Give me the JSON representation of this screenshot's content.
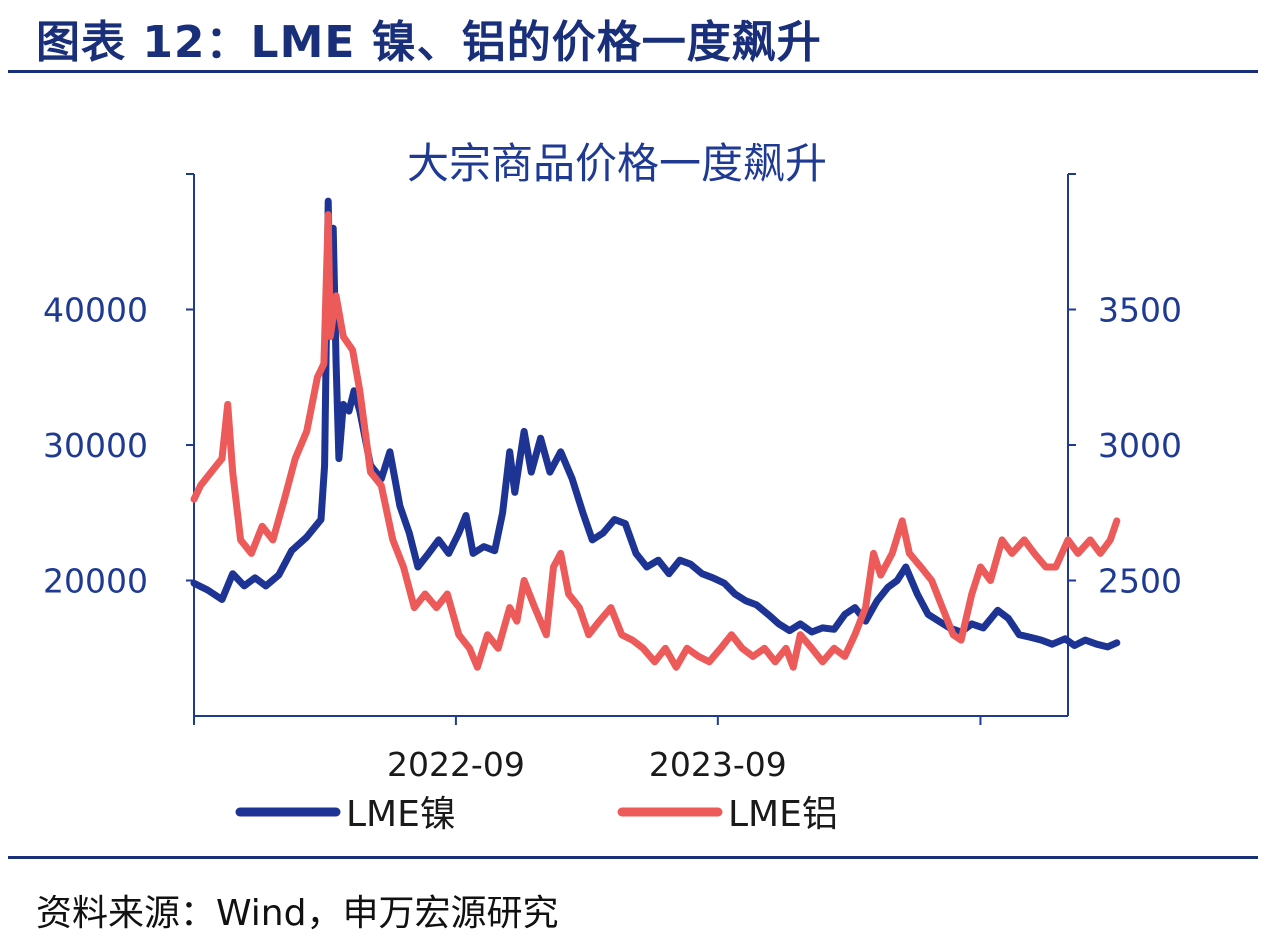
{
  "figure_title": "图表 12：LME 镍、铝的价格一度飙升",
  "source_text": "资料来源：Wind，申万宏源研究",
  "colors": {
    "title": "#1a2f7a",
    "axis": "#1f3a93",
    "nickel": "#1d3494",
    "aluminum": "#ec5a5a"
  },
  "chart_data": {
    "type": "line",
    "title": "大宗商品价格一度飙升",
    "x_tick_labels": [
      "2022-09",
      "2023-09"
    ],
    "x_tick_dates": [
      "2021-09",
      "2022-09",
      "2023-09",
      "2024-09"
    ],
    "x_range": [
      "2021-09",
      "2025-01"
    ],
    "y_left": {
      "ticks": [
        "20000",
        "30000",
        "40000"
      ],
      "range": [
        10000,
        50000
      ]
    },
    "y_right": {
      "ticks": [
        "2500",
        "3000",
        "3500"
      ],
      "range": [
        2000,
        4000
      ]
    },
    "legend_position": "bottom",
    "grid": false,
    "series": [
      {
        "name": "LME镍",
        "axis": "left",
        "points": [
          [
            "2021-09-01",
            19800
          ],
          [
            "2021-09-20",
            19300
          ],
          [
            "2021-10-10",
            18600
          ],
          [
            "2021-10-25",
            20500
          ],
          [
            "2021-11-10",
            19600
          ],
          [
            "2021-11-25",
            20200
          ],
          [
            "2021-12-10",
            19600
          ],
          [
            "2021-12-28",
            20400
          ],
          [
            "2022-01-15",
            22200
          ],
          [
            "2022-02-05",
            23200
          ],
          [
            "2022-02-25",
            24500
          ],
          [
            "2022-03-02",
            28500
          ],
          [
            "2022-03-07",
            48000
          ],
          [
            "2022-03-10",
            40000
          ],
          [
            "2022-03-14",
            46000
          ],
          [
            "2022-03-18",
            36000
          ],
          [
            "2022-03-22",
            29000
          ],
          [
            "2022-03-28",
            33000
          ],
          [
            "2022-04-05",
            32500
          ],
          [
            "2022-04-12",
            34000
          ],
          [
            "2022-04-20",
            32500
          ],
          [
            "2022-05-05",
            28500
          ],
          [
            "2022-05-20",
            27500
          ],
          [
            "2022-06-01",
            29500
          ],
          [
            "2022-06-15",
            25500
          ],
          [
            "2022-06-28",
            23500
          ],
          [
            "2022-07-10",
            21000
          ],
          [
            "2022-07-25",
            22000
          ],
          [
            "2022-08-08",
            23000
          ],
          [
            "2022-08-22",
            22000
          ],
          [
            "2022-09-05",
            23500
          ],
          [
            "2022-09-15",
            24800
          ],
          [
            "2022-09-25",
            22000
          ],
          [
            "2022-10-10",
            22500
          ],
          [
            "2022-10-25",
            22200
          ],
          [
            "2022-11-05",
            25000
          ],
          [
            "2022-11-15",
            29500
          ],
          [
            "2022-11-22",
            26500
          ],
          [
            "2022-12-05",
            31000
          ],
          [
            "2022-12-15",
            28000
          ],
          [
            "2022-12-28",
            30500
          ],
          [
            "2023-01-10",
            28000
          ],
          [
            "2023-01-25",
            29500
          ],
          [
            "2023-02-10",
            27500
          ],
          [
            "2023-02-25",
            25000
          ],
          [
            "2023-03-10",
            23000
          ],
          [
            "2023-03-25",
            23500
          ],
          [
            "2023-04-10",
            24500
          ],
          [
            "2023-04-25",
            24200
          ],
          [
            "2023-05-10",
            22000
          ],
          [
            "2023-05-25",
            21000
          ],
          [
            "2023-06-10",
            21500
          ],
          [
            "2023-06-25",
            20500
          ],
          [
            "2023-07-10",
            21500
          ],
          [
            "2023-07-25",
            21200
          ],
          [
            "2023-08-10",
            20500
          ],
          [
            "2023-08-25",
            20200
          ],
          [
            "2023-09-10",
            19800
          ],
          [
            "2023-09-25",
            19000
          ],
          [
            "2023-10-10",
            18500
          ],
          [
            "2023-10-25",
            18200
          ],
          [
            "2023-11-10",
            17500
          ],
          [
            "2023-11-25",
            16800
          ],
          [
            "2023-12-10",
            16300
          ],
          [
            "2023-12-25",
            16800
          ],
          [
            "2024-01-10",
            16200
          ],
          [
            "2024-01-25",
            16500
          ],
          [
            "2024-02-10",
            16400
          ],
          [
            "2024-02-25",
            17500
          ],
          [
            "2024-03-10",
            18000
          ],
          [
            "2024-03-25",
            17000
          ],
          [
            "2024-04-10",
            18500
          ],
          [
            "2024-04-25",
            19500
          ],
          [
            "2024-05-08",
            20000
          ],
          [
            "2024-05-20",
            21000
          ],
          [
            "2024-06-05",
            19000
          ],
          [
            "2024-06-20",
            17500
          ],
          [
            "2024-07-05",
            17000
          ],
          [
            "2024-07-20",
            16500
          ],
          [
            "2024-08-05",
            16200
          ],
          [
            "2024-08-20",
            16800
          ],
          [
            "2024-09-05",
            16500
          ],
          [
            "2024-09-25",
            17800
          ],
          [
            "2024-10-10",
            17200
          ],
          [
            "2024-10-25",
            16000
          ],
          [
            "2024-11-10",
            15800
          ],
          [
            "2024-11-25",
            15600
          ],
          [
            "2024-12-10",
            15300
          ],
          [
            "2024-12-28",
            15700
          ],
          [
            "2025-01-10",
            15200
          ],
          [
            "2025-01-25",
            15600
          ],
          [
            "2025-02-10",
            15300
          ],
          [
            "2025-02-25",
            15100
          ],
          [
            "2025-03-10",
            15400
          ]
        ]
      },
      {
        "name": "LME铝",
        "axis": "right",
        "points": [
          [
            "2021-09-01",
            2800
          ],
          [
            "2021-09-10",
            2850
          ],
          [
            "2021-09-25",
            2900
          ],
          [
            "2021-10-10",
            2950
          ],
          [
            "2021-10-18",
            3150
          ],
          [
            "2021-10-25",
            2900
          ],
          [
            "2021-11-05",
            2650
          ],
          [
            "2021-11-20",
            2600
          ],
          [
            "2021-12-05",
            2700
          ],
          [
            "2021-12-20",
            2650
          ],
          [
            "2022-01-05",
            2800
          ],
          [
            "2022-01-20",
            2950
          ],
          [
            "2022-02-05",
            3050
          ],
          [
            "2022-02-20",
            3250
          ],
          [
            "2022-03-01",
            3300
          ],
          [
            "2022-03-07",
            3850
          ],
          [
            "2022-03-10",
            3400
          ],
          [
            "2022-03-18",
            3550
          ],
          [
            "2022-03-28",
            3400
          ],
          [
            "2022-04-10",
            3350
          ],
          [
            "2022-04-20",
            3200
          ],
          [
            "2022-05-05",
            2900
          ],
          [
            "2022-05-20",
            2850
          ],
          [
            "2022-06-05",
            2650
          ],
          [
            "2022-06-20",
            2550
          ],
          [
            "2022-07-05",
            2400
          ],
          [
            "2022-07-20",
            2450
          ],
          [
            "2022-08-05",
            2400
          ],
          [
            "2022-08-20",
            2450
          ],
          [
            "2022-09-05",
            2300
          ],
          [
            "2022-09-20",
            2250
          ],
          [
            "2022-10-01",
            2180
          ],
          [
            "2022-10-15",
            2300
          ],
          [
            "2022-10-30",
            2250
          ],
          [
            "2022-11-15",
            2400
          ],
          [
            "2022-11-25",
            2350
          ],
          [
            "2022-12-05",
            2500
          ],
          [
            "2022-12-20",
            2400
          ],
          [
            "2023-01-05",
            2300
          ],
          [
            "2023-01-15",
            2550
          ],
          [
            "2023-01-25",
            2600
          ],
          [
            "2023-02-05",
            2450
          ],
          [
            "2023-02-20",
            2400
          ],
          [
            "2023-03-05",
            2300
          ],
          [
            "2023-03-20",
            2350
          ],
          [
            "2023-04-05",
            2400
          ],
          [
            "2023-04-20",
            2300
          ],
          [
            "2023-05-05",
            2280
          ],
          [
            "2023-05-20",
            2250
          ],
          [
            "2023-06-05",
            2200
          ],
          [
            "2023-06-20",
            2250
          ],
          [
            "2023-07-05",
            2180
          ],
          [
            "2023-07-20",
            2250
          ],
          [
            "2023-08-05",
            2220
          ],
          [
            "2023-08-20",
            2200
          ],
          [
            "2023-09-05",
            2250
          ],
          [
            "2023-09-20",
            2300
          ],
          [
            "2023-10-05",
            2250
          ],
          [
            "2023-10-20",
            2220
          ],
          [
            "2023-11-05",
            2250
          ],
          [
            "2023-11-20",
            2200
          ],
          [
            "2023-12-05",
            2250
          ],
          [
            "2023-12-15",
            2180
          ],
          [
            "2023-12-25",
            2300
          ],
          [
            "2024-01-10",
            2250
          ],
          [
            "2024-01-25",
            2200
          ],
          [
            "2024-02-10",
            2250
          ],
          [
            "2024-02-25",
            2220
          ],
          [
            "2024-03-10",
            2300
          ],
          [
            "2024-03-25",
            2400
          ],
          [
            "2024-04-05",
            2600
          ],
          [
            "2024-04-15",
            2520
          ],
          [
            "2024-05-01",
            2600
          ],
          [
            "2024-05-15",
            2720
          ],
          [
            "2024-05-25",
            2600
          ],
          [
            "2024-06-10",
            2550
          ],
          [
            "2024-06-25",
            2500
          ],
          [
            "2024-07-10",
            2400
          ],
          [
            "2024-07-25",
            2300
          ],
          [
            "2024-08-05",
            2280
          ],
          [
            "2024-08-20",
            2450
          ],
          [
            "2024-09-01",
            2550
          ],
          [
            "2024-09-15",
            2500
          ],
          [
            "2024-10-01",
            2650
          ],
          [
            "2024-10-15",
            2600
          ],
          [
            "2024-11-01",
            2650
          ],
          [
            "2024-11-15",
            2600
          ],
          [
            "2024-12-01",
            2550
          ],
          [
            "2024-12-15",
            2550
          ],
          [
            "2025-01-01",
            2650
          ],
          [
            "2025-01-15",
            2600
          ],
          [
            "2025-02-01",
            2650
          ],
          [
            "2025-02-15",
            2600
          ],
          [
            "2025-03-01",
            2650
          ],
          [
            "2025-03-10",
            2720
          ]
        ]
      }
    ]
  }
}
